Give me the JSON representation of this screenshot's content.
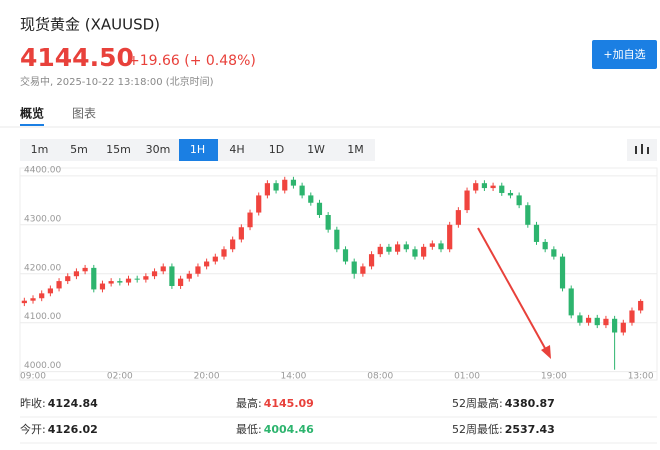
{
  "header": {
    "title": "现货黄金 (XAUUSD)",
    "price": "4144.50",
    "change": "+19.66 (+ 0.48%)",
    "status": "交易中, 2025-10-22 13:18:00 (北京时间)",
    "button": "+加自选"
  },
  "tabs": [
    "概览",
    "图表"
  ],
  "intervals": [
    "1m",
    "5m",
    "15m",
    "30m",
    "1H",
    "4H",
    "1D",
    "1W",
    "1M"
  ],
  "chart_data": {
    "type": "candlestick",
    "categories": [
      null,
      "09:00",
      null,
      null,
      null,
      null,
      null,
      null,
      null,
      null,
      null,
      "02:00",
      null,
      null,
      null,
      null,
      null,
      null,
      null,
      null,
      null,
      "20:00",
      null,
      null,
      null,
      null,
      null,
      null,
      null,
      null,
      null,
      "14:00",
      null,
      null,
      null,
      null,
      null,
      null,
      null,
      null,
      null,
      "08:00",
      null,
      null,
      null,
      null,
      null,
      null,
      null,
      null,
      null,
      "01:00",
      null,
      null,
      null,
      null,
      null,
      null,
      null,
      null,
      null,
      "19:00",
      null,
      null,
      null,
      null,
      null,
      null,
      null,
      null,
      null,
      "13:00"
    ],
    "open": [
      4140,
      4145,
      4150,
      4160,
      4170,
      4185,
      4195,
      4205,
      4212,
      4168,
      4180,
      4185,
      4182,
      4190,
      4188,
      4195,
      4205,
      4215,
      4175,
      4190,
      4200,
      4215,
      4225,
      4235,
      4250,
      4270,
      4295,
      4325,
      4360,
      4385,
      4370,
      4392,
      4380,
      4360,
      4345,
      4320,
      4290,
      4250,
      4225,
      4200,
      4215,
      4240,
      4255,
      4245,
      4260,
      4250,
      4235,
      4255,
      4262,
      4250,
      4300,
      4330,
      4370,
      4385,
      4375,
      4380,
      4365,
      4360,
      4340,
      4300,
      4265,
      4250,
      4235,
      4170,
      4115,
      4100,
      4110,
      4095,
      4108,
      4080,
      4100,
      4125
    ],
    "high": [
      4151,
      4156,
      4166,
      4176,
      4191,
      4201,
      4211,
      4218,
      4218,
      4186,
      4191,
      4191,
      4196,
      4196,
      4201,
      4211,
      4221,
      4221,
      4196,
      4206,
      4221,
      4231,
      4241,
      4256,
      4276,
      4301,
      4331,
      4366,
      4391,
      4391,
      4398,
      4398,
      4386,
      4366,
      4351,
      4326,
      4296,
      4256,
      4231,
      4221,
      4246,
      4261,
      4261,
      4266,
      4266,
      4256,
      4261,
      4268,
      4268,
      4306,
      4336,
      4376,
      4391,
      4391,
      4386,
      4386,
      4371,
      4366,
      4346,
      4306,
      4271,
      4256,
      4241,
      4176,
      4121,
      4116,
      4116,
      4114,
      4114,
      4106,
      4131,
      4148
    ],
    "low": [
      4134,
      4139,
      4144,
      4154,
      4164,
      4179,
      4189,
      4199,
      4162,
      4162,
      4174,
      4176,
      4176,
      4182,
      4182,
      4189,
      4199,
      4169,
      4169,
      4184,
      4194,
      4209,
      4219,
      4229,
      4244,
      4264,
      4289,
      4319,
      4354,
      4364,
      4364,
      4374,
      4354,
      4339,
      4314,
      4284,
      4244,
      4219,
      4190,
      4194,
      4209,
      4234,
      4239,
      4239,
      4244,
      4229,
      4229,
      4249,
      4244,
      4244,
      4294,
      4324,
      4364,
      4369,
      4369,
      4359,
      4354,
      4334,
      4294,
      4259,
      4244,
      4229,
      4164,
      4109,
      4094,
      4094,
      4089,
      4089,
      4004,
      4074,
      4094,
      4119
    ],
    "close": [
      4145,
      4150,
      4160,
      4170,
      4185,
      4195,
      4205,
      4212,
      4168,
      4180,
      4185,
      4182,
      4190,
      4188,
      4195,
      4205,
      4215,
      4175,
      4190,
      4200,
      4215,
      4225,
      4235,
      4250,
      4270,
      4295,
      4325,
      4360,
      4385,
      4370,
      4392,
      4380,
      4360,
      4345,
      4320,
      4290,
      4250,
      4225,
      4200,
      4215,
      4240,
      4255,
      4245,
      4260,
      4250,
      4235,
      4255,
      4262,
      4250,
      4300,
      4330,
      4370,
      4385,
      4375,
      4380,
      4365,
      4360,
      4340,
      4300,
      4265,
      4250,
      4235,
      4170,
      4115,
      4100,
      4110,
      4095,
      4108,
      4080,
      4100,
      4125,
      4144.5
    ],
    "up_color": "#f0443e",
    "down_color": "#2db46e",
    "ylim": [
      3983,
      4416
    ],
    "yticks": [
      {
        "value": 4000,
        "label": "4000.00"
      },
      {
        "value": 4100,
        "label": "4100.00"
      },
      {
        "value": 4200,
        "label": "4200.00"
      },
      {
        "value": 4300,
        "label": "4300.00"
      },
      {
        "value": 4400,
        "label": "4400.00"
      }
    ],
    "grid": true
  },
  "stats": [
    [
      {
        "label": "昨收:",
        "value": "4124.84"
      },
      {
        "label": "最高:",
        "value": "4145.09"
      },
      {
        "label": "52周最高:",
        "value": "4380.87"
      }
    ],
    [
      {
        "label": "今开:",
        "value": "4126.02"
      },
      {
        "label": "最低:",
        "value": "4004.46"
      },
      {
        "label": "52周最低:",
        "value": "2537.43"
      }
    ]
  ]
}
